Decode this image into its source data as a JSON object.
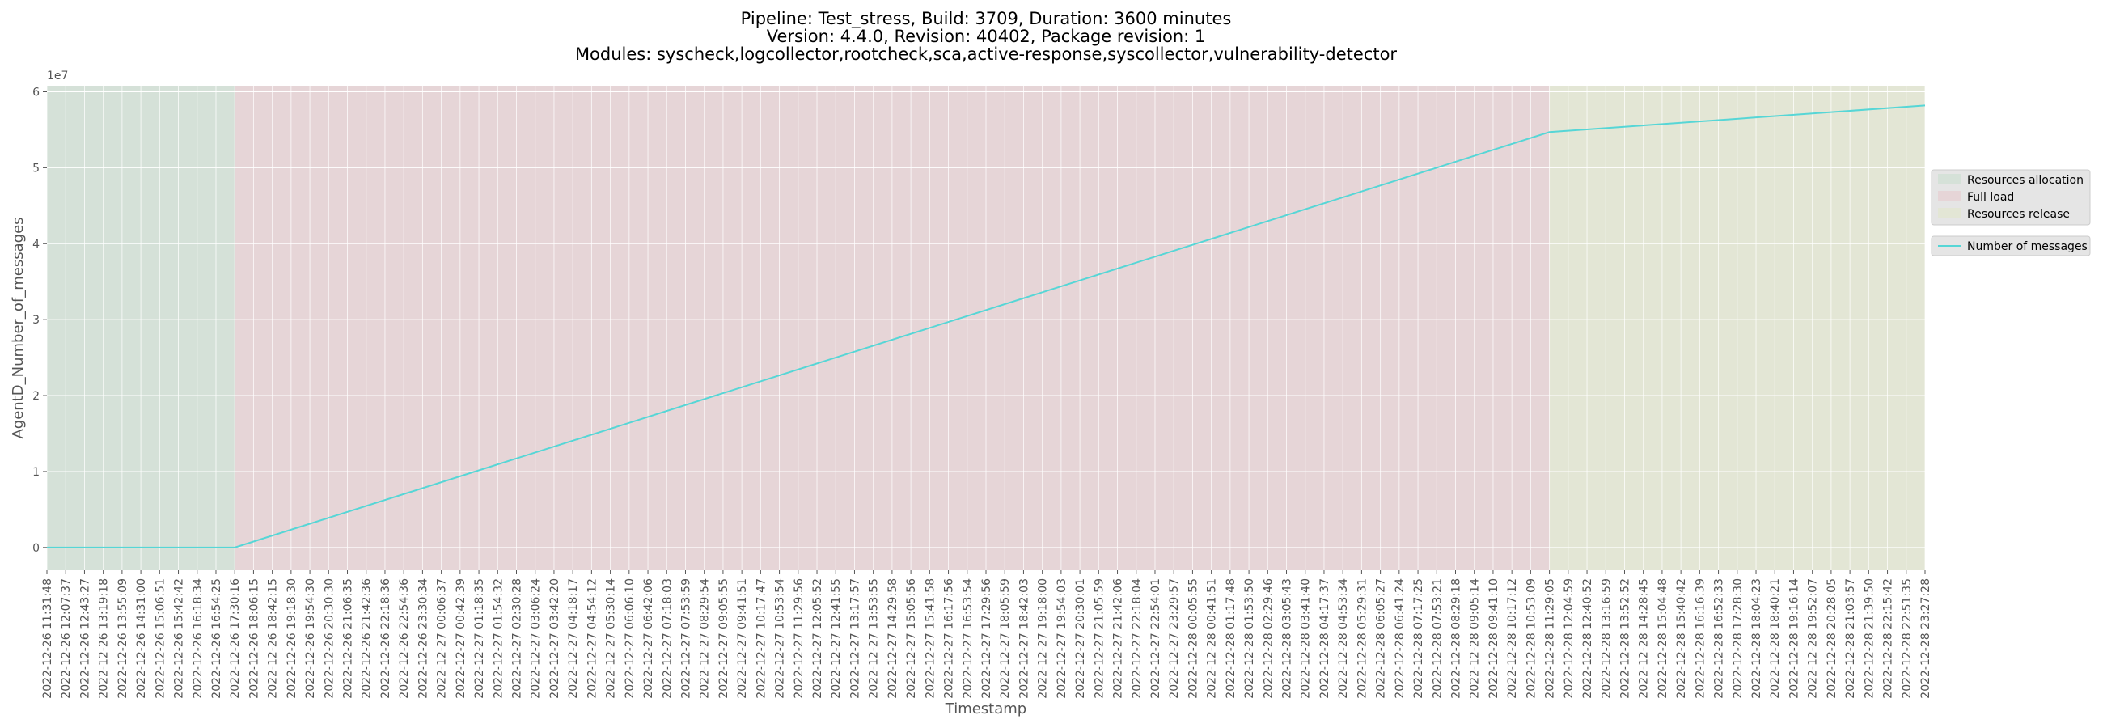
{
  "chart_data": {
    "type": "line",
    "title_lines": [
      "Pipeline: Test_stress, Build: 3709, Duration: 3600 minutes",
      "Version: 4.4.0, Revision: 40402, Package revision: 1",
      "Modules: syscheck,logcollector,rootcheck,sca,active-response,syscollector,vulnerability-detector"
    ],
    "xlabel": "Timestamp",
    "ylabel": "AgentD_Number_of_messages",
    "y_offset_label": "1e7",
    "ylim": [
      -3000000,
      60800000
    ],
    "y_ticks": [
      0,
      10000000,
      20000000,
      30000000,
      40000000,
      50000000,
      60000000
    ],
    "y_tick_labels": [
      "0",
      "1",
      "2",
      "3",
      "4",
      "5",
      "6"
    ],
    "grid": true,
    "legend_placement": "right",
    "phases": [
      {
        "name": "Resources allocation",
        "start_index": 0,
        "end_index": 10,
        "color": "#d5e1d8"
      },
      {
        "name": "Full load",
        "start_index": 10,
        "end_index": 80,
        "color": "#e6d5d7"
      },
      {
        "name": "Resources release",
        "start_index": 80,
        "end_index": 100,
        "color": "#e3e6d5"
      }
    ],
    "series": [
      {
        "name": "Number of messages",
        "color": "#56d6d6",
        "points": [
          {
            "x_index": 0,
            "y": 0
          },
          {
            "x_index": 10,
            "y": 0
          },
          {
            "x_index": 80,
            "y": 54700000
          },
          {
            "x_index": 100,
            "y": 58200000
          }
        ]
      }
    ],
    "x_tick_labels": [
      "2022-12-26 11:31:48",
      "2022-12-26 12:07:37",
      "2022-12-26 12:43:27",
      "2022-12-26 13:19:18",
      "2022-12-26 13:55:09",
      "2022-12-26 14:31:00",
      "2022-12-26 15:06:51",
      "2022-12-26 15:42:42",
      "2022-12-26 16:18:34",
      "2022-12-26 16:54:25",
      "2022-12-26 17:30:16",
      "2022-12-26 18:06:15",
      "2022-12-26 18:42:15",
      "2022-12-26 19:18:30",
      "2022-12-26 19:54:30",
      "2022-12-26 20:30:30",
      "2022-12-26 21:06:35",
      "2022-12-26 21:42:36",
      "2022-12-26 22:18:36",
      "2022-12-26 22:54:36",
      "2022-12-26 23:30:34",
      "2022-12-27 00:06:37",
      "2022-12-27 00:42:39",
      "2022-12-27 01:18:35",
      "2022-12-27 01:54:32",
      "2022-12-27 02:30:28",
      "2022-12-27 03:06:24",
      "2022-12-27 03:42:20",
      "2022-12-27 04:18:17",
      "2022-12-27 04:54:12",
      "2022-12-27 05:30:14",
      "2022-12-27 06:06:10",
      "2022-12-27 06:42:06",
      "2022-12-27 07:18:03",
      "2022-12-27 07:53:59",
      "2022-12-27 08:29:54",
      "2022-12-27 09:05:55",
      "2022-12-27 09:41:51",
      "2022-12-27 10:17:47",
      "2022-12-27 10:53:54",
      "2022-12-27 11:29:56",
      "2022-12-27 12:05:52",
      "2022-12-27 12:41:55",
      "2022-12-27 13:17:57",
      "2022-12-27 13:53:55",
      "2022-12-27 14:29:58",
      "2022-12-27 15:05:56",
      "2022-12-27 15:41:58",
      "2022-12-27 16:17:56",
      "2022-12-27 16:53:54",
      "2022-12-27 17:29:56",
      "2022-12-27 18:05:59",
      "2022-12-27 18:42:03",
      "2022-12-27 19:18:00",
      "2022-12-27 19:54:03",
      "2022-12-27 20:30:01",
      "2022-12-27 21:05:59",
      "2022-12-27 21:42:06",
      "2022-12-27 22:18:04",
      "2022-12-27 22:54:01",
      "2022-12-27 23:29:57",
      "2022-12-28 00:05:55",
      "2022-12-28 00:41:51",
      "2022-12-28 01:17:48",
      "2022-12-28 01:53:50",
      "2022-12-28 02:29:46",
      "2022-12-28 03:05:43",
      "2022-12-28 03:41:40",
      "2022-12-28 04:17:37",
      "2022-12-28 04:53:34",
      "2022-12-28 05:29:31",
      "2022-12-28 06:05:27",
      "2022-12-28 06:41:24",
      "2022-12-28 07:17:25",
      "2022-12-28 07:53:21",
      "2022-12-28 08:29:18",
      "2022-12-28 09:05:14",
      "2022-12-28 09:41:10",
      "2022-12-28 10:17:12",
      "2022-12-28 10:53:09",
      "2022-12-28 11:29:05",
      "2022-12-28 12:04:59",
      "2022-12-28 12:40:52",
      "2022-12-28 13:16:59",
      "2022-12-28 13:52:52",
      "2022-12-28 14:28:45",
      "2022-12-28 15:04:48",
      "2022-12-28 15:40:42",
      "2022-12-28 16:16:39",
      "2022-12-28 16:52:33",
      "2022-12-28 17:28:30",
      "2022-12-28 18:04:23",
      "2022-12-28 18:40:21",
      "2022-12-28 19:16:14",
      "2022-12-28 19:52:07",
      "2022-12-28 20:28:05",
      "2022-12-28 21:03:57",
      "2022-12-28 21:39:50",
      "2022-12-28 22:15:42",
      "2022-12-28 22:51:35",
      "2022-12-28 23:27:28"
    ]
  }
}
